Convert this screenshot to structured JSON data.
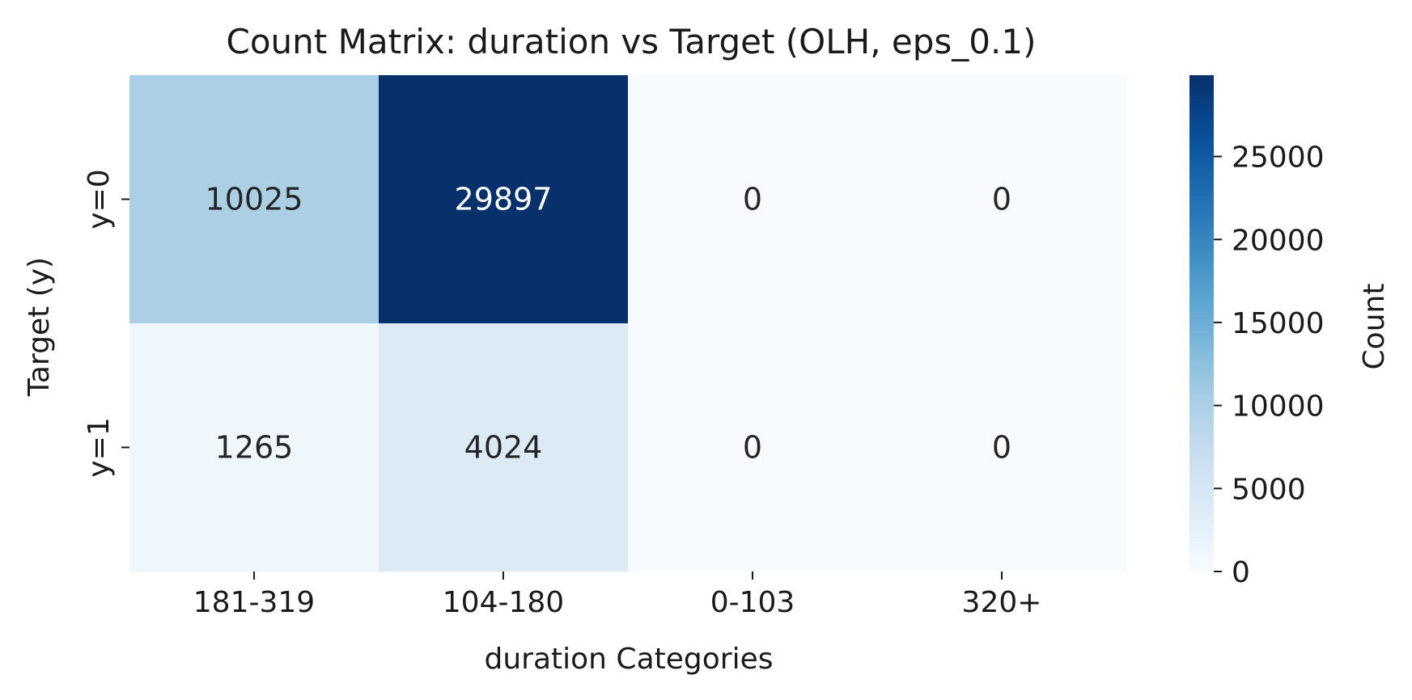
{
  "chart_data": {
    "type": "heatmap",
    "title": "Count Matrix: duration vs Target (OLH, eps_0.1)",
    "xlabel": "duration Categories",
    "ylabel": "Target (y)",
    "x_categories": [
      "181-319",
      "104-180",
      "0-103",
      "320+"
    ],
    "y_categories": [
      "y=0",
      "y=1"
    ],
    "values": [
      [
        10025,
        29897,
        0,
        0
      ],
      [
        1265,
        4024,
        0,
        0
      ]
    ],
    "colormap": "Blues",
    "vmin": 0,
    "vmax": 29897,
    "colorbar": {
      "label": "Count",
      "ticks": [
        0,
        5000,
        10000,
        15000,
        20000,
        25000
      ]
    }
  }
}
